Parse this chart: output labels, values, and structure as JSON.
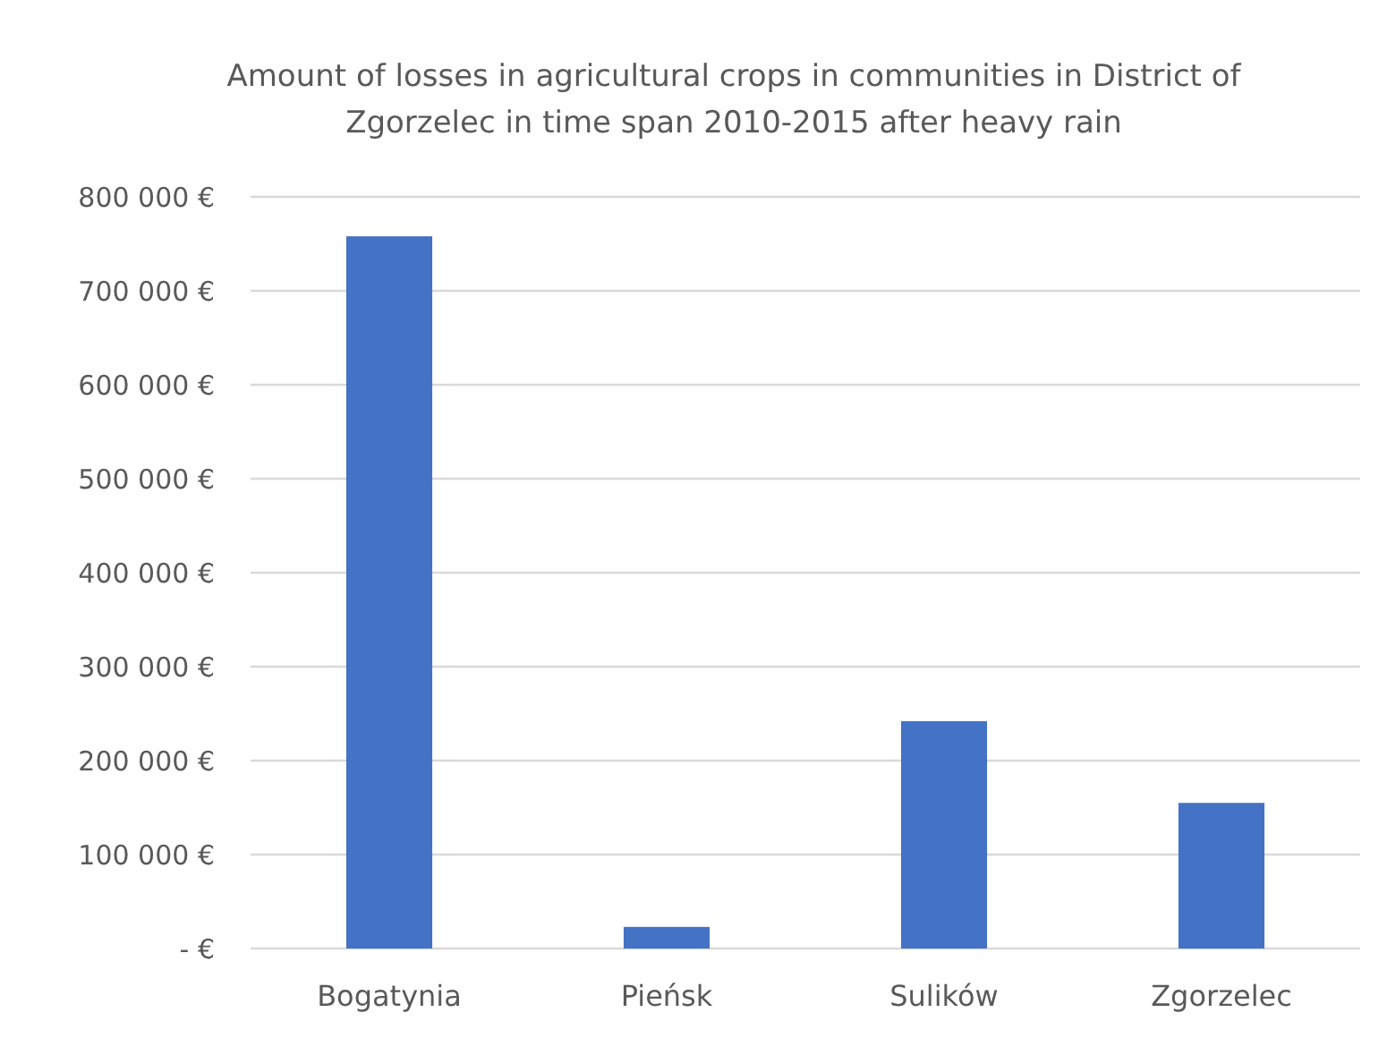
{
  "chart_data": {
    "type": "bar",
    "title": "Amount of losses in agricultural crops in communities in District of Zgorzelec in time span 2010-2015 after heavy rain",
    "categories": [
      "Bogatynia",
      "Pieńsk",
      "Sulików",
      "Zgorzelec"
    ],
    "values": [
      758000,
      23000,
      242000,
      155000
    ],
    "color": "#4472c4",
    "ylim": [
      0,
      800000
    ],
    "yticks": [
      {
        "value": 0,
        "label": "- €"
      },
      {
        "value": 100000,
        "label": "100 000 €"
      },
      {
        "value": 200000,
        "label": "200 000 €"
      },
      {
        "value": 300000,
        "label": "300 000 €"
      },
      {
        "value": 400000,
        "label": "400 000 €"
      },
      {
        "value": 500000,
        "label": "500 000 €"
      },
      {
        "value": 600000,
        "label": "600 000 €"
      },
      {
        "value": 700000,
        "label": "700 000 €"
      },
      {
        "value": 800000,
        "label": "800 000 €"
      }
    ],
    "grid": "y"
  }
}
